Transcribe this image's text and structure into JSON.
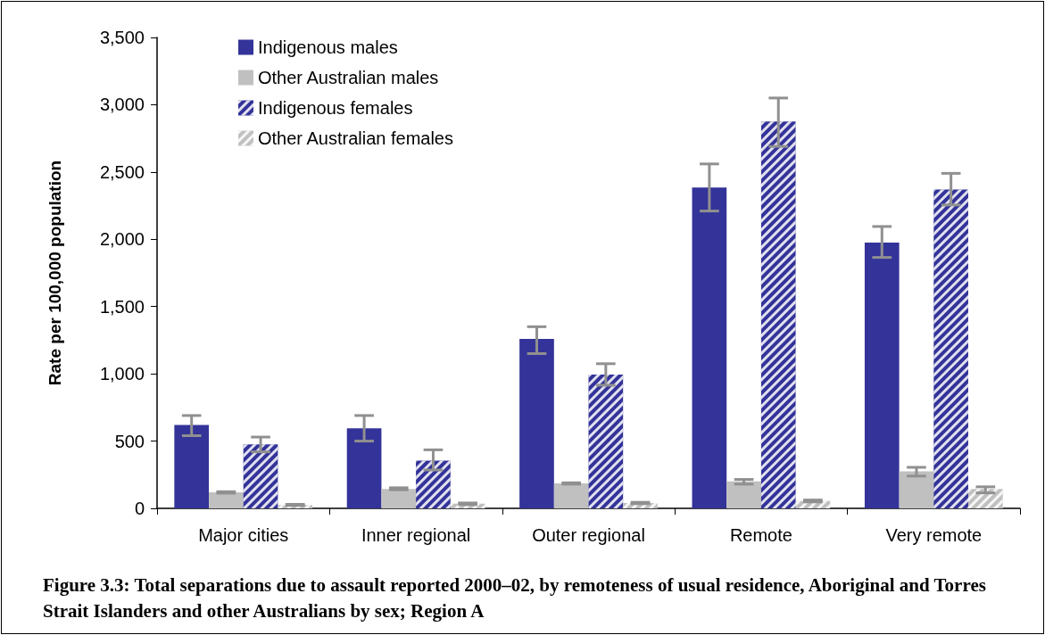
{
  "chart_data": {
    "type": "bar",
    "ylabel": "Rate per 100,000 population",
    "categories": [
      "Major cities",
      "Inner regional",
      "Outer regional",
      "Remote",
      "Very remote"
    ],
    "series": [
      {
        "name": "Indigenous males",
        "color": "#333399",
        "values": [
          620,
          595,
          1260,
          2385,
          1975
        ],
        "errors": [
          [
            540,
            690
          ],
          [
            500,
            690
          ],
          [
            1150,
            1350
          ],
          [
            2210,
            2560
          ],
          [
            1865,
            2095
          ]
        ]
      },
      {
        "name": "Other Australian males",
        "color": "#c0c0c0",
        "values": [
          120,
          145,
          185,
          200,
          275
        ],
        "errors": [
          [
            113,
            124
          ],
          [
            138,
            153
          ],
          [
            180,
            190
          ],
          [
            180,
            215
          ],
          [
            240,
            305
          ]
        ]
      },
      {
        "name": "Indigenous females",
        "color": "#333399",
        "values": [
          475,
          355,
          995,
          2875,
          2370
        ],
        "errors": [
          [
            420,
            530
          ],
          [
            285,
            435
          ],
          [
            915,
            1075
          ],
          [
            2690,
            3050
          ],
          [
            2255,
            2490
          ]
        ]
      },
      {
        "name": "Other Australian females",
        "color": "#c0c0c0",
        "values": [
          25,
          35,
          40,
          55,
          145
        ],
        "errors": [
          [
            22,
            30
          ],
          [
            28,
            40
          ],
          [
            35,
            45
          ],
          [
            48,
            62
          ],
          [
            115,
            160
          ]
        ]
      }
    ],
    "ylim": [
      0,
      3500
    ],
    "yticks": [
      0,
      500,
      {
        "value": 1000,
        "label": "1,000"
      },
      {
        "value": 1500,
        "label": "1,500"
      },
      {
        "value": 2000,
        "label": "2,000"
      },
      {
        "value": 2500,
        "label": "2,500"
      },
      {
        "value": 3000,
        "label": "3,000"
      },
      {
        "value": 3500,
        "label": "3,500"
      }
    ],
    "grid": false,
    "legend": "top left",
    "annotations": [
      "Figure 3.3: Total separations due to assault reported 2000–02, by remoteness of usual residence, Aboriginal and Torres Strait Islanders and other Australians by sex; Region A"
    ]
  }
}
